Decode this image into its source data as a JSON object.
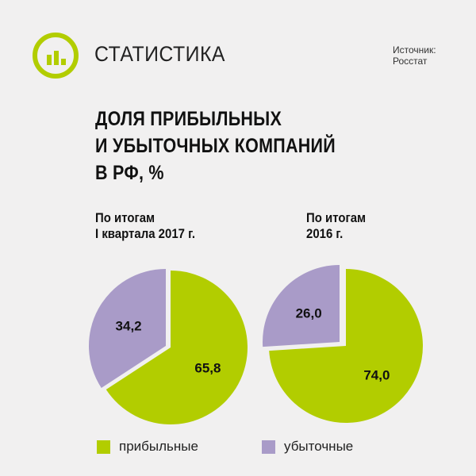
{
  "header": {
    "section_title": "СТАТИСТИКА",
    "source_line1": "Источник:",
    "source_line2": "Росстат",
    "logo_icon": "bar-chart-icon"
  },
  "title_lines": [
    "ДОЛЯ ПРИБЫЛЬНЫХ",
    "И УБЫТОЧНЫХ КОМПАНИЙ",
    "В РФ, %"
  ],
  "colors": {
    "profitable": "#b2cd00",
    "unprofitable": "#a99bc8",
    "accent": "#b2cd00"
  },
  "chart_data": [
    {
      "type": "pie",
      "title_lines": [
        "По итогам",
        "I квартала 2017 г."
      ],
      "categories": [
        "прибыльные",
        "убыточные"
      ],
      "values": [
        65.8,
        34.2
      ],
      "value_labels": [
        "65,8",
        "34,2"
      ]
    },
    {
      "type": "pie",
      "title_lines": [
        "По итогам",
        "2016 г."
      ],
      "categories": [
        "прибыльные",
        "убыточные"
      ],
      "values": [
        74.0,
        26.0
      ],
      "value_labels": [
        "74,0",
        "26,0"
      ]
    }
  ],
  "legend": [
    {
      "label": "прибыльные",
      "color": "#b2cd00"
    },
    {
      "label": "убыточные",
      "color": "#a99bc8"
    }
  ]
}
